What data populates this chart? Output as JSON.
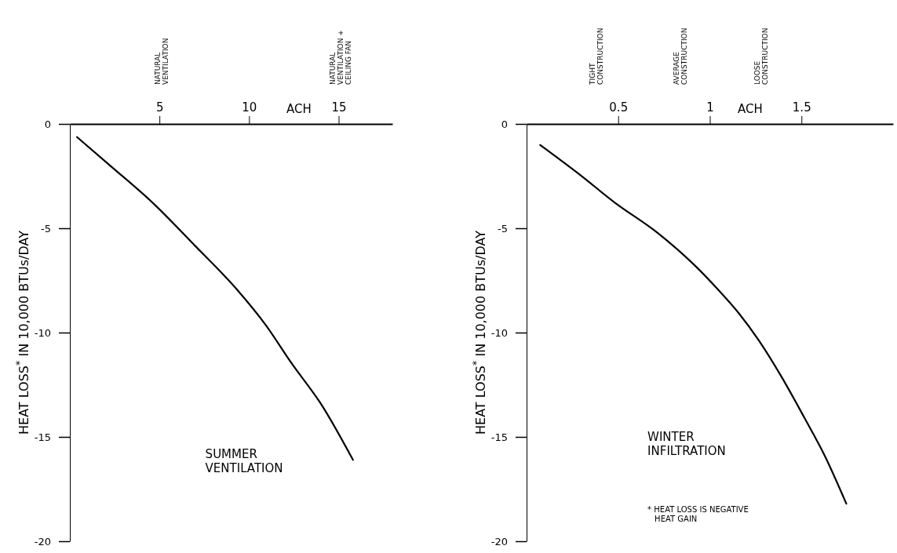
{
  "chart_data": [
    {
      "type": "line",
      "title": "SUMMER\nVENTILATION",
      "xlabel": "ACH",
      "ylabel": "HEAT LOSS$^{*}$ IN 10,000 BTUs/DAY",
      "xlim": [
        0,
        18
      ],
      "ylim": [
        -20,
        0
      ],
      "xticks": [
        5,
        10,
        15
      ],
      "yticks": [
        0,
        -5,
        -10,
        -15,
        -20
      ],
      "grid": false,
      "marker": "none",
      "line_style": "solid",
      "annotations": [
        "NATURAL\nVENTILATION",
        "NATURAL\nVENTILATION +\nCEILING FAN"
      ],
      "series": [
        {
          "color": "#000000",
          "x": [
            0.4,
            2.35,
            4.65,
            7.0,
            9.35,
            10.9,
            12.4,
            14.0,
            15.8
          ],
          "values": [
            -0.63,
            -2.07,
            -3.8,
            -5.85,
            -7.96,
            -9.6,
            -11.5,
            -13.4,
            -16.1
          ]
        }
      ]
    },
    {
      "type": "line",
      "title": "WINTER\nINFILTRATION",
      "xlabel": "ACH",
      "ylabel": "HEAT LOSS$^{*}$ IN 10,000 BTUs/DAY",
      "xlim": [
        0,
        2
      ],
      "ylim": [
        -20,
        0
      ],
      "xticks": [
        0.5,
        1,
        1.5
      ],
      "yticks": [
        0,
        -5,
        -10,
        -15,
        -20
      ],
      "grid": false,
      "marker": "none",
      "line_style": "solid",
      "annotations": [
        "TIGHT\nCONSTRUCTION",
        "AVERAGE\nCONSTRUCTION",
        "LOOSE\nCONSTRUCTION",
        "* HEAT LOSS IS NEGATIVE\nHEAT GAIN"
      ],
      "series": [
        {
          "color": "#000000",
          "x": [
            0.074,
            0.29,
            0.48,
            0.715,
            0.92,
            1.045,
            1.157,
            1.267,
            1.39,
            1.516,
            1.627,
            1.745
          ],
          "values": [
            -1.01,
            -2.43,
            -3.76,
            -5.22,
            -6.8,
            -7.94,
            -9.06,
            -10.37,
            -12.1,
            -14.08,
            -15.9,
            -18.2
          ]
        }
      ]
    }
  ]
}
